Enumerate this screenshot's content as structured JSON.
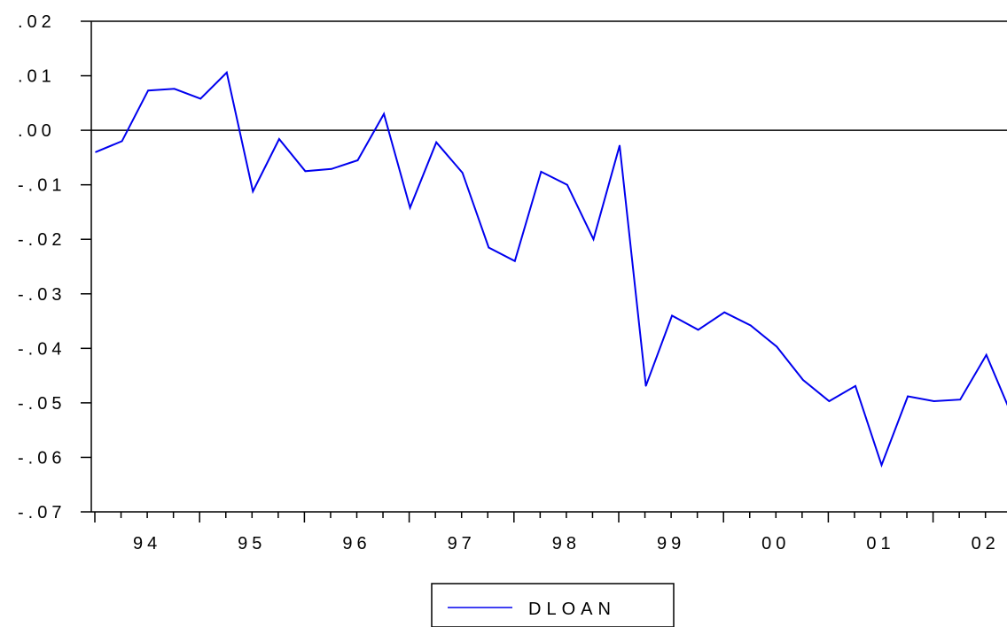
{
  "chart_data": {
    "type": "line",
    "title": "",
    "xlabel": "",
    "ylabel": "",
    "x_tick_labels": [
      "94",
      "95",
      "96",
      "97",
      "98",
      "99",
      "00",
      "01",
      "02"
    ],
    "y_tick_labels": [
      ".02",
      ".01",
      ".00",
      "-.01",
      "-.02",
      "-.03",
      "-.04",
      "-.05",
      "-.06",
      "-.07"
    ],
    "y_tick_values": [
      0.02,
      0.01,
      0.0,
      -0.01,
      -0.02,
      -0.03,
      -0.04,
      -0.05,
      -0.06,
      -0.07
    ],
    "ylim": [
      -0.07,
      0.02
    ],
    "x_range": [
      "1994Q1",
      "2002Q4"
    ],
    "reference_line_y": 0.0,
    "legend_position": "bottom-center",
    "colors": {
      "series": "#0000ee",
      "axis": "#000000"
    },
    "series": [
      {
        "name": "DLOAN",
        "x": [
          "1994Q1",
          "1994Q2",
          "1994Q3",
          "1994Q4",
          "1995Q1",
          "1995Q2",
          "1995Q3",
          "1995Q4",
          "1996Q1",
          "1996Q2",
          "1996Q3",
          "1996Q4",
          "1997Q1",
          "1997Q2",
          "1997Q3",
          "1997Q4",
          "1998Q1",
          "1998Q2",
          "1998Q3",
          "1998Q4",
          "1999Q1",
          "1999Q2",
          "1999Q3",
          "1999Q4",
          "2000Q1",
          "2000Q2",
          "2000Q3",
          "2000Q4",
          "2001Q1",
          "2001Q2",
          "2001Q3",
          "2001Q4",
          "2002Q1",
          "2002Q2",
          "2002Q3",
          "2002Q4"
        ],
        "values": [
          -0.004,
          -0.002,
          0.0073,
          0.0076,
          0.0058,
          0.0106,
          -0.0112,
          -0.0016,
          -0.0075,
          -0.0071,
          -0.0055,
          0.003,
          -0.0142,
          -0.0022,
          -0.0078,
          -0.0215,
          -0.024,
          -0.0076,
          -0.01,
          -0.02,
          -0.0028,
          -0.0469,
          -0.034,
          -0.0366,
          -0.0334,
          -0.0358,
          -0.0397,
          -0.0458,
          -0.0497,
          -0.0469,
          -0.0614,
          -0.0488,
          -0.0497,
          -0.0494,
          -0.0412,
          -0.0526
        ]
      }
    ]
  }
}
